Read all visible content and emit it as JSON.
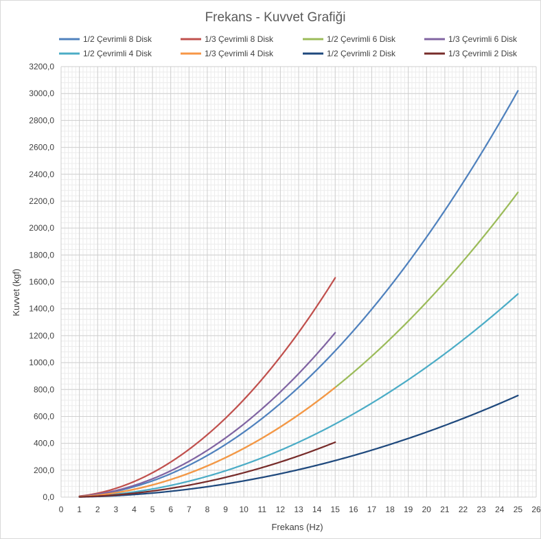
{
  "chart_data": {
    "type": "line",
    "title": "Frekans - Kuvvet Grafiği",
    "xlabel": "Frekans (Hz)",
    "ylabel": "Kuvvet (kgf)",
    "xlim": [
      0,
      26
    ],
    "ylim": [
      0,
      3200
    ],
    "x_ticks": [
      "0",
      "1",
      "2",
      "3",
      "4",
      "5",
      "6",
      "7",
      "8",
      "9",
      "10",
      "11",
      "12",
      "13",
      "14",
      "15",
      "16",
      "17",
      "18",
      "19",
      "20",
      "21",
      "22",
      "23",
      "24",
      "25",
      "26"
    ],
    "y_ticks": [
      "0,0",
      "200,0",
      "400,0",
      "600,0",
      "800,0",
      "1000,0",
      "1200,0",
      "1400,0",
      "1600,0",
      "1800,0",
      "2000,0",
      "2200,0",
      "2400,0",
      "2600,0",
      "2800,0",
      "3000,0",
      "3200,0"
    ],
    "grid": true,
    "legend_position": "top",
    "series": [
      {
        "name": "1/2 Çevrimli 8 Disk",
        "color": "#4f81bd",
        "x_end": 25,
        "y_end": 3020
      },
      {
        "name": "1/3 Çevrimli 8 Disk",
        "color": "#c0504d",
        "x_end": 15,
        "y_end": 1630
      },
      {
        "name": "1/2 Çevrimli 6 Disk",
        "color": "#9bbb59",
        "x_end": 25,
        "y_end": 2265
      },
      {
        "name": "1/3 Çevrimli 6 Disk",
        "color": "#8064a2",
        "x_end": 15,
        "y_end": 1222
      },
      {
        "name": "1/2 Çevrimli 4 Disk",
        "color": "#4bacc6",
        "x_end": 25,
        "y_end": 1510
      },
      {
        "name": "1/3 Çevrimli 4 Disk",
        "color": "#f79646",
        "x_end": 15,
        "y_end": 815
      },
      {
        "name": "1/2 Çevrimli 2 Disk",
        "color": "#1f497d",
        "x_end": 25,
        "y_end": 755
      },
      {
        "name": "1/3 Çevrimli 2 Disk",
        "color": "#772c2a",
        "x_end": 15,
        "y_end": 408
      }
    ]
  }
}
